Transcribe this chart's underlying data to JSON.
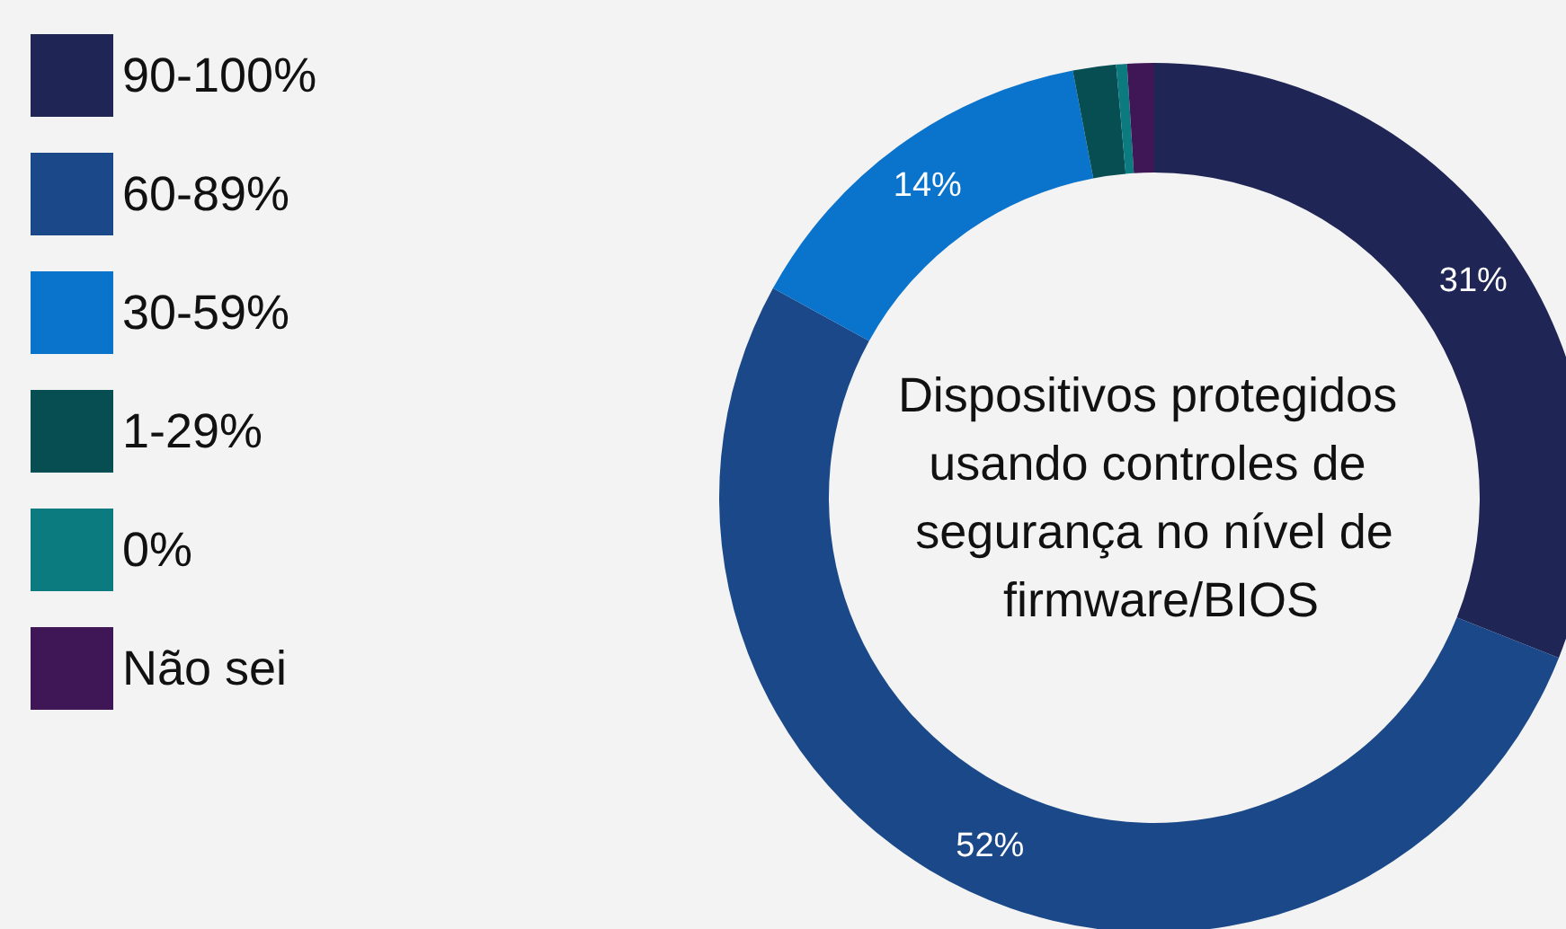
{
  "chart_data": {
    "type": "donut",
    "title": "Dispositivos protegidos usando controles de segurança no nível de firmware/BIOS",
    "categories": [
      "90-100%",
      "60-89%",
      "30-59%",
      "1-29%",
      "0%",
      "Não sei"
    ],
    "values": [
      31,
      52,
      14,
      1.6,
      0.4,
      1.0
    ],
    "value_labels": [
      "31%",
      "52%",
      "14%",
      null,
      null,
      null
    ],
    "colors": [
      "#1f2554",
      "#1a4888",
      "#0a74cc",
      "#064e52",
      "#0b7b80",
      "#3f1756"
    ],
    "legend": "left"
  }
}
